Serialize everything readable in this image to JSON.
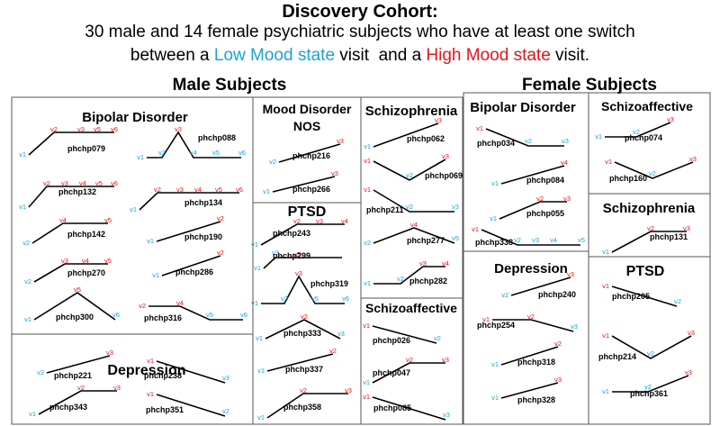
{
  "title": "Discovery Cohort:",
  "subtitle_line1": "30 male and 14 female psychiatric subjects who have at least one switch",
  "subtitle_line2": {
    "pre": "between a ",
    "low": "Low Mood state",
    "mid": " visit  and a ",
    "high": "High Mood state",
    "post": " visit."
  },
  "colors": {
    "low": "#1aa3d6",
    "high": "#e3151a",
    "line": "#000000",
    "border": "#555555"
  },
  "male_heading": "Male Subjects",
  "female_heading": "Female Subjects",
  "groups": [
    {
      "key": "m-bipolar",
      "title": "Bipolar Disorder"
    },
    {
      "key": "m-depression",
      "title": "Depression"
    },
    {
      "key": "m-mood-nos",
      "title": "Mood Disorder NOS"
    },
    {
      "key": "m-ptsd",
      "title": "PTSD"
    },
    {
      "key": "m-schizophrenia",
      "title": "Schizophrenia"
    },
    {
      "key": "m-schizoaffective",
      "title": "Schizoaffective"
    },
    {
      "key": "f-bipolar",
      "title": "Bipolar Disorder"
    },
    {
      "key": "f-depression",
      "title": "Depression"
    },
    {
      "key": "f-schizoaffective",
      "title": "Schizoaffective"
    },
    {
      "key": "f-schizophrenia",
      "title": "Schizophrenia"
    },
    {
      "key": "f-ptsd",
      "title": "PTSD"
    }
  ],
  "subjects": [
    {
      "id": "phchp079",
      "group": "m-bipolar",
      "visits": [
        {
          "label": "v1",
          "state": "low"
        },
        {
          "label": "v2",
          "state": "high"
        },
        {
          "label": "v3",
          "state": "high"
        },
        {
          "label": "v5",
          "state": "high"
        },
        {
          "label": "v6",
          "state": "high"
        }
      ]
    },
    {
      "id": "phchp088",
      "group": "m-bipolar",
      "visits": [
        {
          "label": "v1",
          "state": "low"
        },
        {
          "label": "v2",
          "state": "low"
        },
        {
          "label": "v3",
          "state": "high"
        },
        {
          "label": "v4",
          "state": "low"
        },
        {
          "label": "v5",
          "state": "low"
        },
        {
          "label": "v6",
          "state": "low"
        }
      ]
    },
    {
      "id": "phchp132",
      "group": "m-bipolar",
      "visits": [
        {
          "label": "v1",
          "state": "low"
        },
        {
          "label": "v2",
          "state": "high"
        },
        {
          "label": "v3",
          "state": "high"
        },
        {
          "label": "v4",
          "state": "high"
        },
        {
          "label": "v5",
          "state": "high"
        },
        {
          "label": "v6",
          "state": "high"
        }
      ]
    },
    {
      "id": "phchp134",
      "group": "m-bipolar",
      "visits": [
        {
          "label": "v1",
          "state": "low"
        },
        {
          "label": "v2",
          "state": "high"
        },
        {
          "label": "v3",
          "state": "high"
        },
        {
          "label": "v4",
          "state": "high"
        },
        {
          "label": "v5",
          "state": "high"
        },
        {
          "label": "v6",
          "state": "high"
        }
      ]
    },
    {
      "id": "phchp142",
      "group": "m-bipolar",
      "visits": [
        {
          "label": "v2",
          "state": "low"
        },
        {
          "label": "v4",
          "state": "high"
        },
        {
          "label": "v5",
          "state": "high"
        }
      ]
    },
    {
      "id": "phchp190",
      "group": "m-bipolar",
      "visits": [
        {
          "label": "v1",
          "state": "low"
        },
        {
          "label": "v2",
          "state": "high"
        }
      ]
    },
    {
      "id": "phchp270",
      "group": "m-bipolar",
      "visits": [
        {
          "label": "v2",
          "state": "low"
        },
        {
          "label": "v3",
          "state": "high"
        },
        {
          "label": "v4",
          "state": "high"
        },
        {
          "label": "v5",
          "state": "high"
        }
      ]
    },
    {
      "id": "phchp286",
      "group": "m-bipolar",
      "visits": [
        {
          "label": "v1",
          "state": "low"
        },
        {
          "label": "v2",
          "state": "high"
        }
      ]
    },
    {
      "id": "phchp300",
      "group": "m-bipolar",
      "visits": [
        {
          "label": "v1",
          "state": "low"
        },
        {
          "label": "v5",
          "state": "high"
        },
        {
          "label": "v6",
          "state": "low"
        }
      ]
    },
    {
      "id": "phchp316",
      "group": "m-bipolar",
      "visits": [
        {
          "label": "v2",
          "state": "high"
        },
        {
          "label": "v4",
          "state": "high"
        },
        {
          "label": "v5",
          "state": "low"
        },
        {
          "label": "v6",
          "state": "low"
        }
      ]
    },
    {
      "id": "phchp221",
      "group": "m-depression",
      "visits": [
        {
          "label": "v2",
          "state": "low"
        },
        {
          "label": "v3",
          "state": "high"
        }
      ]
    },
    {
      "id": "phchp238",
      "group": "m-depression",
      "visits": [
        {
          "label": "v1",
          "state": "high"
        },
        {
          "label": "v3",
          "state": "low"
        }
      ]
    },
    {
      "id": "phchp343",
      "group": "m-depression",
      "visits": [
        {
          "label": "v1",
          "state": "low"
        },
        {
          "label": "v2",
          "state": "high"
        },
        {
          "label": "v3",
          "state": "high"
        }
      ]
    },
    {
      "id": "phchp351",
      "group": "m-depression",
      "visits": [
        {
          "label": "v1",
          "state": "high"
        },
        {
          "label": "v2",
          "state": "low"
        }
      ]
    },
    {
      "id": "phchp216",
      "group": "m-mood-nos",
      "visits": [
        {
          "label": "v2",
          "state": "low"
        },
        {
          "label": "v3",
          "state": "high"
        }
      ]
    },
    {
      "id": "phchp266",
      "group": "m-mood-nos",
      "visits": [
        {
          "label": "v1",
          "state": "low"
        },
        {
          "label": "v3",
          "state": "high"
        }
      ]
    },
    {
      "id": "phchp243",
      "group": "m-ptsd",
      "visits": [
        {
          "label": "v1",
          "state": "low"
        },
        {
          "label": "v2",
          "state": "high"
        },
        {
          "label": "v3",
          "state": "high"
        },
        {
          "label": "v4",
          "state": "high"
        }
      ]
    },
    {
      "id": "phchp299",
      "group": "m-ptsd",
      "visits": [
        {
          "label": "v1",
          "state": "low"
        },
        {
          "label": "v3",
          "state": "low"
        },
        {
          "label": "v5",
          "state": "high"
        }
      ]
    },
    {
      "id": "phchp319",
      "group": "m-ptsd",
      "visits": [
        {
          "label": "v1",
          "state": "low"
        },
        {
          "label": "v2",
          "state": "low"
        },
        {
          "label": "v3",
          "state": "high"
        },
        {
          "label": "v5",
          "state": "low"
        },
        {
          "label": "v6",
          "state": "low"
        }
      ]
    },
    {
      "id": "phchp333",
      "group": "m-ptsd",
      "visits": [
        {
          "label": "v1",
          "state": "low"
        },
        {
          "label": "v2",
          "state": "high"
        },
        {
          "label": "v3",
          "state": "low"
        }
      ]
    },
    {
      "id": "phchp337",
      "group": "m-ptsd",
      "visits": [
        {
          "label": "v1",
          "state": "low"
        },
        {
          "label": "v2",
          "state": "high"
        }
      ]
    },
    {
      "id": "phchp358",
      "group": "m-ptsd",
      "visits": [
        {
          "label": "v1",
          "state": "low"
        },
        {
          "label": "v2",
          "state": "high"
        },
        {
          "label": "v3",
          "state": "high"
        }
      ]
    },
    {
      "id": "phchp062",
      "group": "m-schizophrenia",
      "visits": [
        {
          "label": "v1",
          "state": "low"
        },
        {
          "label": "v3",
          "state": "high"
        }
      ]
    },
    {
      "id": "phchp069",
      "group": "m-schizophrenia",
      "visits": [
        {
          "label": "v1",
          "state": "high"
        },
        {
          "label": "v2",
          "state": "low"
        },
        {
          "label": "v3",
          "state": "high"
        }
      ]
    },
    {
      "id": "phchp211",
      "group": "m-schizophrenia",
      "visits": [
        {
          "label": "v1",
          "state": "high"
        },
        {
          "label": "v2",
          "state": "low"
        },
        {
          "label": "v3",
          "state": "low"
        }
      ]
    },
    {
      "id": "phchp277",
      "group": "m-schizophrenia",
      "visits": [
        {
          "label": "v2",
          "state": "low"
        },
        {
          "label": "v4",
          "state": "high"
        },
        {
          "label": "v5",
          "state": "low"
        }
      ]
    },
    {
      "id": "phchp282",
      "group": "m-schizophrenia",
      "visits": [
        {
          "label": "v1",
          "state": "low"
        },
        {
          "label": "v2",
          "state": "low"
        },
        {
          "label": "v3",
          "state": "high"
        },
        {
          "label": "v4",
          "state": "high"
        }
      ]
    },
    {
      "id": "phchp026",
      "group": "m-schizoaffective",
      "visits": [
        {
          "label": "v1",
          "state": "high"
        },
        {
          "label": "v2",
          "state": "low"
        }
      ]
    },
    {
      "id": "phchp047",
      "group": "m-schizoaffective",
      "visits": [
        {
          "label": "v1",
          "state": "low"
        },
        {
          "label": "v2",
          "state": "high"
        },
        {
          "label": "v3",
          "state": "high"
        }
      ]
    },
    {
      "id": "phchp085",
      "group": "m-schizoaffective",
      "visits": [
        {
          "label": "v1",
          "state": "high"
        },
        {
          "label": "v3",
          "state": "low"
        }
      ]
    },
    {
      "id": "phchp034",
      "group": "f-bipolar",
      "visits": [
        {
          "label": "v1",
          "state": "high"
        },
        {
          "label": "v2",
          "state": "low"
        },
        {
          "label": "v3",
          "state": "low"
        }
      ]
    },
    {
      "id": "phchp084",
      "group": "f-bipolar",
      "visits": [
        {
          "label": "v1",
          "state": "low"
        },
        {
          "label": "v4",
          "state": "high"
        }
      ]
    },
    {
      "id": "phchp055",
      "group": "f-bipolar",
      "visits": [
        {
          "label": "v1",
          "state": "low"
        },
        {
          "label": "v2",
          "state": "high"
        },
        {
          "label": "v3",
          "state": "high"
        }
      ]
    },
    {
      "id": "phchp338",
      "group": "f-bipolar",
      "visits": [
        {
          "label": "v1",
          "state": "high"
        },
        {
          "label": "v2",
          "state": "low"
        },
        {
          "label": "v3",
          "state": "low"
        },
        {
          "label": "v4",
          "state": "low"
        },
        {
          "label": "v5",
          "state": "low"
        }
      ]
    },
    {
      "id": "phchp240",
      "group": "f-depression",
      "visits": [
        {
          "label": "v2",
          "state": "low"
        },
        {
          "label": "v3",
          "state": "high"
        }
      ]
    },
    {
      "id": "phchp254",
      "group": "f-depression",
      "visits": [
        {
          "label": "v1",
          "state": "high"
        },
        {
          "label": "v2",
          "state": "high"
        },
        {
          "label": "v3",
          "state": "low"
        }
      ]
    },
    {
      "id": "phchp318",
      "group": "f-depression",
      "visits": [
        {
          "label": "v1",
          "state": "low"
        },
        {
          "label": "v2",
          "state": "high"
        }
      ]
    },
    {
      "id": "phchp328",
      "group": "f-depression",
      "visits": [
        {
          "label": "v1",
          "state": "low"
        },
        {
          "label": "v3",
          "state": "high"
        }
      ]
    },
    {
      "id": "phchp074",
      "group": "f-schizoaffective",
      "visits": [
        {
          "label": "v1",
          "state": "low"
        },
        {
          "label": "v2",
          "state": "low"
        },
        {
          "label": "v3",
          "state": "high"
        }
      ]
    },
    {
      "id": "phchp160",
      "group": "f-schizoaffective",
      "visits": [
        {
          "label": "v1",
          "state": "high"
        },
        {
          "label": "v2",
          "state": "low"
        },
        {
          "label": "v3",
          "state": "high"
        }
      ]
    },
    {
      "id": "phchp131",
      "group": "f-schizophrenia",
      "visits": [
        {
          "label": "v1",
          "state": "low"
        },
        {
          "label": "v2",
          "state": "high"
        },
        {
          "label": "v3",
          "state": "high"
        }
      ]
    },
    {
      "id": "phchp205",
      "group": "f-ptsd",
      "visits": [
        {
          "label": "v1",
          "state": "high"
        },
        {
          "label": "v2",
          "state": "low"
        }
      ]
    },
    {
      "id": "phchp214",
      "group": "f-ptsd",
      "visits": [
        {
          "label": "v1",
          "state": "high"
        },
        {
          "label": "v2",
          "state": "low"
        },
        {
          "label": "v3",
          "state": "high"
        }
      ]
    },
    {
      "id": "phchp361",
      "group": "f-ptsd",
      "visits": [
        {
          "label": "v1",
          "state": "low"
        },
        {
          "label": "v2",
          "state": "low"
        },
        {
          "label": "v3",
          "state": "high"
        }
      ]
    }
  ]
}
